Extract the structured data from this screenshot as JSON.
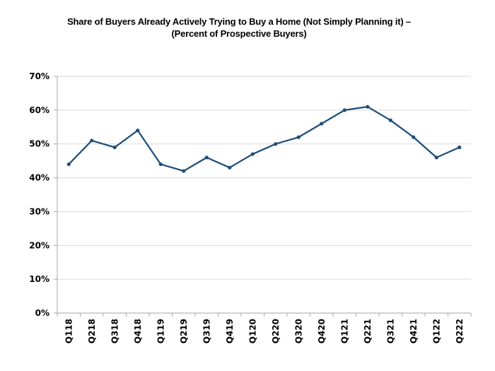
{
  "chart_data": {
    "type": "line",
    "title_line1": "Share of Buyers Already Actively Trying to Buy a Home (Not Simply Planning it) –",
    "title_line2": "(Percent of Prospective Buyers)",
    "categories": [
      "Q118",
      "Q218",
      "Q318",
      "Q418",
      "Q119",
      "Q219",
      "Q319",
      "Q419",
      "Q120",
      "Q220",
      "Q320",
      "Q420",
      "Q121",
      "Q221",
      "Q321",
      "Q421",
      "Q122",
      "Q222"
    ],
    "series": [
      {
        "values": [
          44,
          51,
          49,
          54,
          44,
          42,
          46,
          43,
          47,
          50,
          52,
          56,
          60,
          61,
          57,
          52,
          46,
          49
        ]
      }
    ],
    "ylim": [
      0,
      70
    ],
    "yticks": [
      0,
      10,
      20,
      30,
      40,
      50,
      60,
      70
    ],
    "ytick_suffix": "%",
    "grid": true,
    "line_color": "#1f4e79",
    "grid_color": "#d9d9d9",
    "axis_color": "#a6a6a6"
  }
}
